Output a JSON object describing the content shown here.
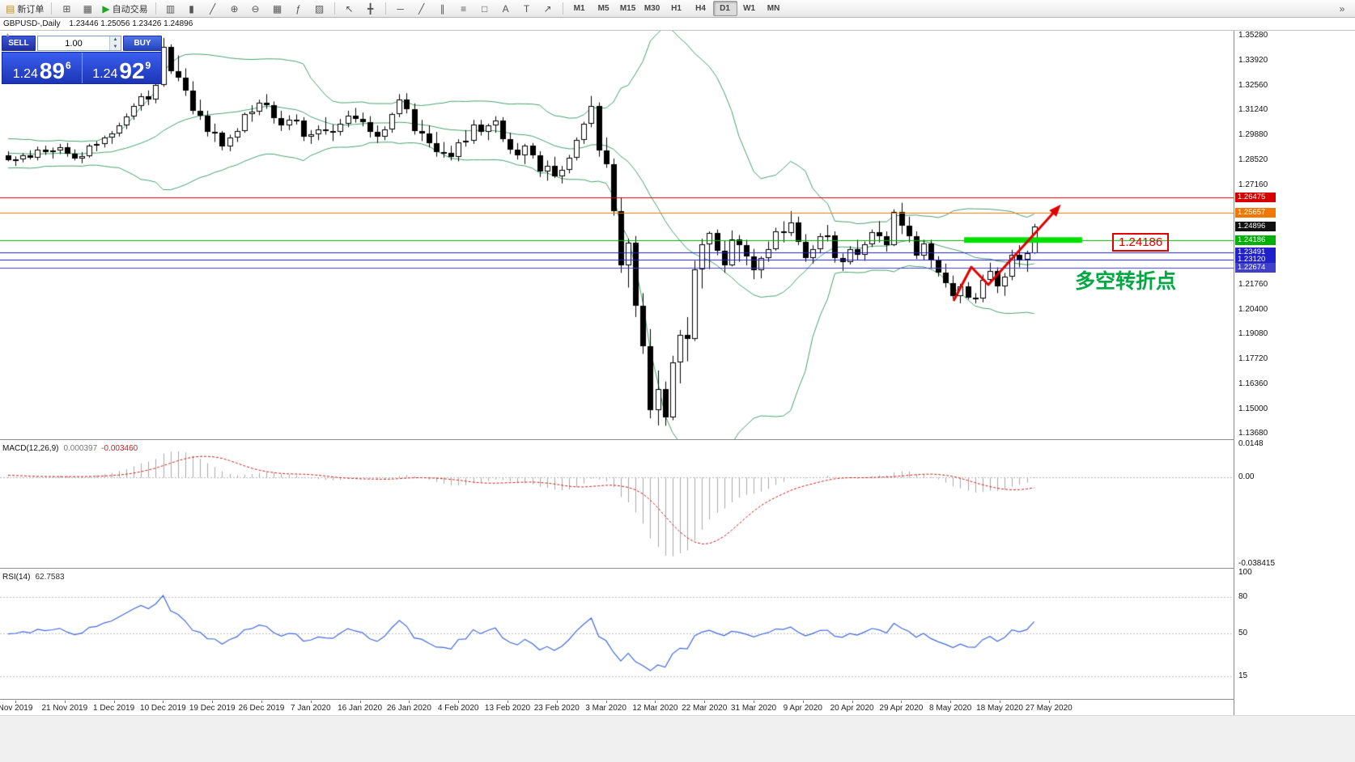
{
  "toolbar": {
    "new_order": {
      "label": "新订单",
      "icon": "▤"
    },
    "autotrade": {
      "label": "自动交易",
      "icon": "▶"
    },
    "overflow_icon": "»",
    "timeframes": [
      "M1",
      "M5",
      "M15",
      "M30",
      "H1",
      "H4",
      "D1",
      "W1",
      "MN"
    ],
    "active_timeframe": "D1",
    "icon_groups": {
      "windows": [
        {
          "name": "new-chart-icon",
          "glyph": "⊞"
        },
        {
          "name": "profiles-icon",
          "glyph": "▦"
        }
      ],
      "chart_types": [
        {
          "name": "bar-chart-icon",
          "glyph": "▥"
        },
        {
          "name": "candlestick-chart-icon",
          "glyph": "▮"
        },
        {
          "name": "line-chart-icon",
          "glyph": "╱"
        }
      ],
      "zoom": [
        {
          "name": "zoom-in-icon",
          "glyph": "⊕"
        },
        {
          "name": "zoom-out-icon",
          "glyph": "⊖"
        }
      ],
      "layout": [
        {
          "name": "tile-windows-icon",
          "glyph": "▦"
        },
        {
          "name": "indicators-icon",
          "glyph": "ƒ"
        },
        {
          "name": "templates-icon",
          "glyph": "▨"
        }
      ],
      "cursor": [
        {
          "name": "cursor-icon",
          "glyph": "↖"
        },
        {
          "name": "crosshair-icon",
          "glyph": "╋"
        }
      ],
      "objects": [
        {
          "name": "horizontal-line-icon",
          "glyph": "─"
        },
        {
          "name": "trendline-icon",
          "glyph": "╱"
        },
        {
          "name": "channel-icon",
          "glyph": "∥"
        },
        {
          "name": "fibonacci-icon",
          "glyph": "≡"
        },
        {
          "name": "shapes-icon",
          "glyph": "□"
        },
        {
          "name": "text-icon",
          "glyph": "A"
        },
        {
          "name": "label-icon",
          "glyph": "T"
        },
        {
          "name": "arrows-icon",
          "glyph": "↗"
        }
      ]
    }
  },
  "symbol_bar": {
    "title": "GBPUSD-,Daily",
    "ohlc": "1.23446 1.25056 1.23426 1.24896"
  },
  "trade_panel": {
    "sell_label": "SELL",
    "buy_label": "BUY",
    "volume": "1.00",
    "sell_price_big": "1.24",
    "sell_price_pips": "89",
    "sell_price_sup": "6",
    "buy_price_big": "1.24",
    "buy_price_pips": "92",
    "buy_price_sup": "9"
  },
  "levels": [
    {
      "price": 1.26475,
      "label": "1.26475",
      "color": "#d40000",
      "line": true
    },
    {
      "price": 1.25657,
      "label": "1.25657",
      "color": "#f07800",
      "line": true
    },
    {
      "price": 1.24896,
      "label": "1.24896",
      "color": "#101010",
      "line": false
    },
    {
      "price": 1.24186,
      "label": "1.24186",
      "color": "#00b000",
      "line": true
    },
    {
      "price": 1.23491,
      "label": "1.23491",
      "color": "#2020cc",
      "line": true
    },
    {
      "price": 1.2312,
      "label": "1.23120",
      "color": "#2020cc",
      "line": true
    },
    {
      "price": 1.22674,
      "label": "1.22674",
      "color": "#4040c8",
      "line": true
    }
  ],
  "annotations": {
    "note_text": "多空转折点",
    "note_color": "#00a843",
    "callout_text": "1.24186",
    "callout_color": "#e00000",
    "green_zone": {
      "price": 1.2418,
      "from_index": 129.5,
      "to_index": 145.5,
      "color": "#00e000"
    },
    "arrow_points": [
      [
        1178,
        372
      ],
      [
        1200,
        330
      ],
      [
        1221,
        352
      ],
      [
        1306,
        258
      ]
    ],
    "arrow_color": "#e00000"
  },
  "axis": {
    "price_ticks": [
      "1.35280",
      "1.33920",
      "1.32560",
      "1.31240",
      "1.29880",
      "1.28520",
      "1.27160",
      "1.21760",
      "1.20400",
      "1.19080",
      "1.17720",
      "1.16360",
      "1.15000",
      "1.13680"
    ],
    "date_ticks": [
      "Nov 2019",
      "21 Nov 2019",
      "1 Dec 2019",
      "10 Dec 2019",
      "19 Dec 2019",
      "26 Dec 2019",
      "7 Jan 2020",
      "16 Jan 2020",
      "26 Jan 2020",
      "4 Feb 2020",
      "13 Feb 2020",
      "23 Feb 2020",
      "3 Mar 2020",
      "12 Mar 2020",
      "22 Mar 2020",
      "31 Mar 2020",
      "9 Apr 2020",
      "20 Apr 2020",
      "29 Apr 2020",
      "8 May 2020",
      "18 May 2020",
      "27 May 2020"
    ]
  },
  "indicators": {
    "macd": {
      "label": "MACD(12,26,9)",
      "value_main": "0.000397",
      "value_signal": "-0.003460",
      "scale": [
        "0.0148",
        "0.00",
        "-0.038415"
      ]
    },
    "rsi": {
      "label": "RSI(14)",
      "value": "62.7583",
      "scale": [
        "100",
        "80",
        "50",
        "15"
      ]
    }
  },
  "colors": {
    "bull": "#ffffff",
    "bear": "#000000",
    "wick": "#000000",
    "bands": "#46a06e",
    "macd_hist": "#a8a8a8",
    "macd_signal": "#d01818",
    "rsi_line": "#4169e1"
  },
  "chart_data": {
    "type": "candlestick",
    "symbol": "GBPUSD",
    "period": "Daily",
    "ylim": [
      1.135,
      1.3554
    ],
    "macd_ylim": [
      -0.038415,
      0.0148
    ],
    "rsi_ylim": [
      0,
      100
    ],
    "prior_closes": [
      1.285,
      1.292,
      1.288,
      1.295,
      1.283,
      1.29,
      1.287,
      1.293,
      1.286,
      1.291,
      1.284,
      1.294,
      1.289,
      1.296,
      1.282,
      1.29,
      1.288,
      1.292,
      1.286
    ],
    "overlays": {
      "bollinger": {
        "period": 20,
        "deviation": 2,
        "color": "#46a06e"
      }
    },
    "candles": [
      [
        1.288,
        1.29,
        1.2845,
        1.2852
      ],
      [
        1.2852,
        1.2872,
        1.282,
        1.2858
      ],
      [
        1.2858,
        1.289,
        1.284,
        1.288
      ],
      [
        1.288,
        1.2905,
        1.2855,
        1.2865
      ],
      [
        1.2865,
        1.2925,
        1.285,
        1.291
      ],
      [
        1.291,
        1.293,
        1.288,
        1.2895
      ],
      [
        1.2895,
        1.292,
        1.286,
        1.2905
      ],
      [
        1.2905,
        1.294,
        1.2885,
        1.292
      ],
      [
        1.292,
        1.2945,
        1.287,
        1.2885
      ],
      [
        1.2885,
        1.291,
        1.285,
        1.286
      ],
      [
        1.286,
        1.2895,
        1.2835,
        1.2875
      ],
      [
        1.2875,
        1.294,
        1.2865,
        1.293
      ],
      [
        1.293,
        1.2955,
        1.29,
        1.294
      ],
      [
        1.294,
        1.2985,
        1.292,
        1.2975
      ],
      [
        1.2975,
        1.301,
        1.294,
        1.2995
      ],
      [
        1.2995,
        1.3055,
        1.298,
        1.304
      ],
      [
        1.304,
        1.3105,
        1.302,
        1.309
      ],
      [
        1.309,
        1.316,
        1.307,
        1.3145
      ],
      [
        1.3145,
        1.3215,
        1.312,
        1.32
      ],
      [
        1.32,
        1.323,
        1.315,
        1.318
      ],
      [
        1.318,
        1.3285,
        1.316,
        1.326
      ],
      [
        1.326,
        1.3515,
        1.325,
        1.3465
      ],
      [
        1.3465,
        1.348,
        1.332,
        1.3335
      ],
      [
        1.3335,
        1.342,
        1.328,
        1.33
      ],
      [
        1.33,
        1.335,
        1.32,
        1.323
      ],
      [
        1.323,
        1.328,
        1.31,
        1.312
      ],
      [
        1.312,
        1.318,
        1.307,
        1.3095
      ],
      [
        1.3095,
        1.312,
        1.298,
        1.3005
      ],
      [
        1.3005,
        1.305,
        1.295,
        1.3
      ],
      [
        1.3,
        1.301,
        1.2905,
        1.2925
      ],
      [
        1.2925,
        1.299,
        1.29,
        1.2975
      ],
      [
        1.2975,
        1.3025,
        1.295,
        1.301
      ],
      [
        1.301,
        1.311,
        1.3,
        1.31
      ],
      [
        1.31,
        1.315,
        1.306,
        1.3115
      ],
      [
        1.3115,
        1.318,
        1.3095,
        1.3165
      ],
      [
        1.3165,
        1.321,
        1.313,
        1.315
      ],
      [
        1.315,
        1.317,
        1.305,
        1.308
      ],
      [
        1.308,
        1.312,
        1.301,
        1.304
      ],
      [
        1.304,
        1.3095,
        1.3015,
        1.307
      ],
      [
        1.307,
        1.31,
        1.3045,
        1.3065
      ],
      [
        1.3065,
        1.3085,
        1.2955,
        1.298
      ],
      [
        1.298,
        1.3015,
        1.294,
        1.299
      ],
      [
        1.299,
        1.304,
        1.296,
        1.302
      ],
      [
        1.302,
        1.3085,
        1.299,
        1.301
      ],
      [
        1.301,
        1.3045,
        1.2955,
        1.3005
      ],
      [
        1.3005,
        1.3075,
        1.2985,
        1.305
      ],
      [
        1.305,
        1.312,
        1.303,
        1.3095
      ],
      [
        1.3095,
        1.3135,
        1.3055,
        1.3075
      ],
      [
        1.3075,
        1.311,
        1.3035,
        1.306
      ],
      [
        1.306,
        1.309,
        1.2975,
        1.3005
      ],
      [
        1.3005,
        1.304,
        1.2945,
        1.298
      ],
      [
        1.298,
        1.3035,
        1.296,
        1.302
      ],
      [
        1.302,
        1.311,
        1.3,
        1.31
      ],
      [
        1.31,
        1.321,
        1.3085,
        1.318
      ],
      [
        1.318,
        1.3215,
        1.3105,
        1.313
      ],
      [
        1.313,
        1.316,
        1.299,
        1.301
      ],
      [
        1.301,
        1.307,
        1.2955,
        1.2995
      ],
      [
        1.2995,
        1.304,
        1.292,
        1.2945
      ],
      [
        1.2945,
        1.3005,
        1.287,
        1.2895
      ],
      [
        1.2895,
        1.295,
        1.2865,
        1.289
      ],
      [
        1.289,
        1.293,
        1.285,
        1.287
      ],
      [
        1.287,
        1.2965,
        1.2845,
        1.295
      ],
      [
        1.295,
        1.3015,
        1.2925,
        1.2955
      ],
      [
        1.2955,
        1.307,
        1.294,
        1.3045
      ],
      [
        1.3045,
        1.307,
        1.2985,
        1.3005
      ],
      [
        1.3005,
        1.305,
        1.296,
        1.304
      ],
      [
        1.304,
        1.309,
        1.3,
        1.3065
      ],
      [
        1.3065,
        1.3085,
        1.295,
        1.2965
      ],
      [
        1.2965,
        1.3,
        1.2885,
        1.291
      ],
      [
        1.291,
        1.2945,
        1.2855,
        1.288
      ],
      [
        1.288,
        1.294,
        1.283,
        1.293
      ],
      [
        1.293,
        1.2945,
        1.286,
        1.288
      ],
      [
        1.288,
        1.29,
        1.276,
        1.279
      ],
      [
        1.279,
        1.285,
        1.274,
        1.282
      ],
      [
        1.282,
        1.287,
        1.2755,
        1.2765
      ],
      [
        1.2765,
        1.282,
        1.2725,
        1.28
      ],
      [
        1.28,
        1.288,
        1.278,
        1.2865
      ],
      [
        1.2865,
        1.2975,
        1.285,
        1.296
      ],
      [
        1.296,
        1.306,
        1.294,
        1.305
      ],
      [
        1.305,
        1.32,
        1.303,
        1.3145
      ],
      [
        1.3145,
        1.3165,
        1.287,
        1.2905
      ],
      [
        1.2905,
        1.2975,
        1.281,
        1.283
      ],
      [
        1.283,
        1.286,
        1.255,
        1.2575
      ],
      [
        1.2575,
        1.265,
        1.224,
        1.228
      ],
      [
        1.228,
        1.2425,
        1.216,
        1.2405
      ],
      [
        1.2405,
        1.244,
        1.2,
        1.206
      ],
      [
        1.206,
        1.213,
        1.18,
        1.184
      ],
      [
        1.184,
        1.1935,
        1.145,
        1.1495
      ],
      [
        1.1495,
        1.171,
        1.1412,
        1.161
      ],
      [
        1.161,
        1.165,
        1.141,
        1.1455
      ],
      [
        1.1455,
        1.179,
        1.144,
        1.1755
      ],
      [
        1.1755,
        1.193,
        1.164,
        1.1905
      ],
      [
        1.1905,
        1.2,
        1.176,
        1.188
      ],
      [
        1.188,
        1.2305,
        1.187,
        1.226
      ],
      [
        1.226,
        1.2425,
        1.2155,
        1.2395
      ],
      [
        1.2395,
        1.2465,
        1.226,
        1.2455
      ],
      [
        1.2455,
        1.2475,
        1.2335,
        1.236
      ],
      [
        1.236,
        1.2415,
        1.224,
        1.228
      ],
      [
        1.228,
        1.247,
        1.2275,
        1.242
      ],
      [
        1.242,
        1.2445,
        1.23,
        1.239
      ],
      [
        1.239,
        1.242,
        1.228,
        1.233
      ],
      [
        1.233,
        1.237,
        1.2205,
        1.2255
      ],
      [
        1.2255,
        1.233,
        1.221,
        1.232
      ],
      [
        1.232,
        1.241,
        1.23,
        1.237
      ],
      [
        1.237,
        1.2485,
        1.236,
        1.2465
      ],
      [
        1.2465,
        1.252,
        1.2405,
        1.2455
      ],
      [
        1.2455,
        1.2575,
        1.244,
        1.2515
      ],
      [
        1.2515,
        1.2545,
        1.239,
        1.241
      ],
      [
        1.241,
        1.245,
        1.23,
        1.232
      ],
      [
        1.232,
        1.239,
        1.229,
        1.237
      ],
      [
        1.237,
        1.2455,
        1.2345,
        1.244
      ],
      [
        1.244,
        1.25,
        1.241,
        1.2445
      ],
      [
        1.2445,
        1.2465,
        1.2295,
        1.232
      ],
      [
        1.232,
        1.2345,
        1.225,
        1.23
      ],
      [
        1.23,
        1.2385,
        1.2285,
        1.237
      ],
      [
        1.237,
        1.242,
        1.231,
        1.234
      ],
      [
        1.234,
        1.241,
        1.2305,
        1.2395
      ],
      [
        1.2395,
        1.2475,
        1.238,
        1.246
      ],
      [
        1.246,
        1.252,
        1.2405,
        1.244
      ],
      [
        1.244,
        1.2465,
        1.2355,
        1.239
      ],
      [
        1.239,
        1.2585,
        1.2385,
        1.257
      ],
      [
        1.257,
        1.262,
        1.245,
        1.2495
      ],
      [
        1.2495,
        1.2545,
        1.2405,
        1.244
      ],
      [
        1.244,
        1.2465,
        1.2315,
        1.2335
      ],
      [
        1.2335,
        1.242,
        1.231,
        1.24
      ],
      [
        1.24,
        1.242,
        1.2265,
        1.2305
      ],
      [
        1.2305,
        1.233,
        1.222,
        1.224
      ],
      [
        1.224,
        1.229,
        1.216,
        1.2185
      ],
      [
        1.2185,
        1.2225,
        1.21,
        1.2115
      ],
      [
        1.2115,
        1.218,
        1.2075,
        1.2165
      ],
      [
        1.2165,
        1.219,
        1.2095,
        1.2105
      ],
      [
        1.2105,
        1.213,
        1.2074,
        1.21
      ],
      [
        1.21,
        1.223,
        1.208,
        1.22
      ],
      [
        1.22,
        1.2295,
        1.2185,
        1.225
      ],
      [
        1.225,
        1.227,
        1.213,
        1.2165
      ],
      [
        1.2165,
        1.224,
        1.2115,
        1.222
      ],
      [
        1.222,
        1.2365,
        1.22,
        1.234
      ],
      [
        1.234,
        1.239,
        1.227,
        1.231
      ],
      [
        1.231,
        1.236,
        1.2245,
        1.2345
      ],
      [
        1.2345,
        1.2506,
        1.2343,
        1.249
      ]
    ]
  }
}
